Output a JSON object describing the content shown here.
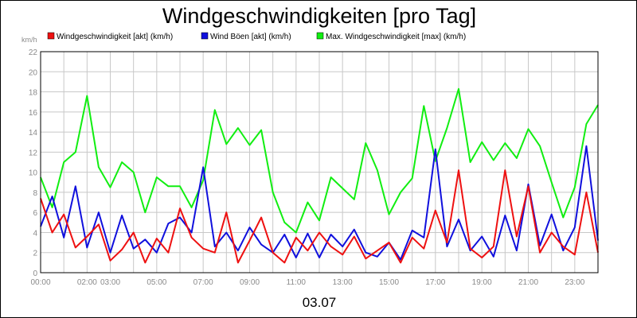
{
  "chart_data": {
    "type": "line",
    "title": "Windgeschwindigkeiten [pro Tag]",
    "ylabel": "km/h",
    "xlabel": "03.07",
    "ylim": [
      0,
      22
    ],
    "yticks": [
      0,
      2,
      4,
      6,
      8,
      10,
      12,
      14,
      16,
      18,
      20,
      22
    ],
    "xlim": [
      0,
      24
    ],
    "xtick_labels": [
      {
        "label": "00:00",
        "hour": 0
      },
      {
        "label": "02:00",
        "hour": 2
      },
      {
        "label": "03:00",
        "hour": 3
      },
      {
        "label": "05:00",
        "hour": 5
      },
      {
        "label": "07:00",
        "hour": 7
      },
      {
        "label": "09:00",
        "hour": 9
      },
      {
        "label": "11:00",
        "hour": 11
      },
      {
        "label": "13:00",
        "hour": 13
      },
      {
        "label": "15:00",
        "hour": 15
      },
      {
        "label": "17:00",
        "hour": 17
      },
      {
        "label": "19:00",
        "hour": 19
      },
      {
        "label": "21:00",
        "hour": 21
      },
      {
        "label": "23:00",
        "hour": 23
      }
    ],
    "grid": true,
    "legend_position": "top",
    "x": [
      0.0,
      0.5,
      1.0,
      1.5,
      2.0,
      2.5,
      3.0,
      3.5,
      4.0,
      4.5,
      5.0,
      5.5,
      6.0,
      6.5,
      7.0,
      7.5,
      8.0,
      8.5,
      9.0,
      9.5,
      10.0,
      10.5,
      11.0,
      11.5,
      12.0,
      12.5,
      13.0,
      13.5,
      14.0,
      14.5,
      15.0,
      15.5,
      16.0,
      16.5,
      17.0,
      17.5,
      18.0,
      18.5,
      19.0,
      19.5,
      20.0,
      20.5,
      21.0,
      21.5,
      22.0,
      22.5,
      23.0,
      23.5,
      24.0
    ],
    "series": [
      {
        "name": "Windgeschwindigkeit [akt] (km/h)",
        "color": "#ee1111",
        "values": [
          7.4,
          4.0,
          5.8,
          2.5,
          3.6,
          4.8,
          1.2,
          2.3,
          4.0,
          1.0,
          3.4,
          2.0,
          6.4,
          3.5,
          2.4,
          2.0,
          6.0,
          1.0,
          3.2,
          5.5,
          2.0,
          1.0,
          3.5,
          2.2,
          4.0,
          2.6,
          1.8,
          3.6,
          1.4,
          2.2,
          3.0,
          1.0,
          3.5,
          2.4,
          6.2,
          3.0,
          10.2,
          2.4,
          1.5,
          2.6,
          10.2,
          3.6,
          8.6,
          2.0,
          4.0,
          2.6,
          1.8,
          8.0,
          2.0
        ]
      },
      {
        "name": "Wind Böen [akt] (km/h)",
        "color": "#1010dd",
        "values": [
          4.6,
          7.6,
          3.5,
          8.6,
          2.5,
          6.0,
          2.0,
          5.7,
          2.4,
          3.3,
          2.0,
          4.9,
          5.5,
          4.0,
          10.5,
          2.6,
          4.0,
          2.2,
          4.5,
          2.8,
          2.0,
          3.8,
          1.5,
          3.9,
          1.5,
          3.8,
          2.6,
          4.3,
          2.0,
          1.6,
          3.0,
          1.3,
          4.2,
          3.5,
          12.3,
          2.6,
          5.3,
          2.2,
          3.6,
          1.6,
          5.7,
          2.2,
          8.8,
          2.7,
          5.8,
          2.2,
          4.5,
          12.6,
          3.2
        ]
      },
      {
        "name": "Max. Windgeschwindigkeit [max] (km/h)",
        "color": "#11ee11",
        "values": [
          9.5,
          6.5,
          11.0,
          12.0,
          17.6,
          10.5,
          8.5,
          11.0,
          10.0,
          6.0,
          9.5,
          8.6,
          8.6,
          6.5,
          9.2,
          16.2,
          12.8,
          14.4,
          12.7,
          14.2,
          8.0,
          5.0,
          4.0,
          7.0,
          5.2,
          9.5,
          8.4,
          7.3,
          12.9,
          10.2,
          5.8,
          8.0,
          9.4,
          16.6,
          11.1,
          14.4,
          18.3,
          11.0,
          13.0,
          11.2,
          12.9,
          11.4,
          14.3,
          12.6,
          9.0,
          5.5,
          8.5,
          14.8,
          16.7
        ]
      }
    ]
  }
}
